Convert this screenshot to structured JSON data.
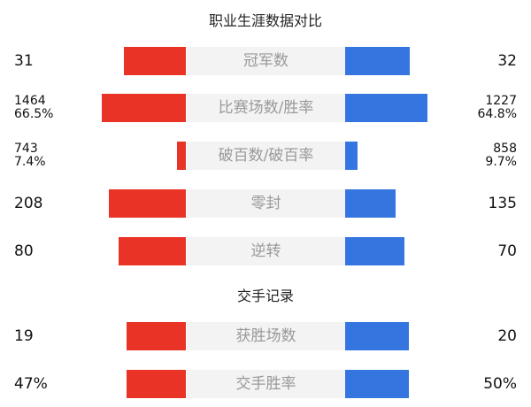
{
  "title": "职业生涯数据对比",
  "section2_title": "交手记录",
  "colors": {
    "left": "#e93326",
    "right": "#3575e0",
    "center_bg": "#f3f3f3"
  },
  "rows": [
    {
      "label": "冠军数",
      "left": [
        "31"
      ],
      "right": [
        "32"
      ],
      "left_bar": 0.7,
      "right_bar": 0.73
    },
    {
      "label": "比赛场数/胜率",
      "left": [
        "1464",
        "66.5%"
      ],
      "right": [
        "1227",
        "64.8%"
      ],
      "left_bar": 0.95,
      "right_bar": 0.93
    },
    {
      "label": "破百数/破百率",
      "left": [
        "743",
        "7.4%"
      ],
      "right": [
        "858",
        "9.7%"
      ],
      "left_bar": 0.1,
      "right_bar": 0.14
    },
    {
      "label": "零封",
      "left": [
        "208"
      ],
      "right": [
        "135"
      ],
      "left_bar": 0.87,
      "right_bar": 0.57
    },
    {
      "label": "逆转",
      "left": [
        "80"
      ],
      "right": [
        "70"
      ],
      "left_bar": 0.76,
      "right_bar": 0.67
    },
    {
      "label": "获胜场数",
      "left": [
        "19"
      ],
      "right": [
        "20"
      ],
      "left_bar": 0.67,
      "right_bar": 0.72
    },
    {
      "label": "交手胜率",
      "left": [
        "47%"
      ],
      "right": [
        "50%"
      ],
      "left_bar": 0.67,
      "right_bar": 0.72
    }
  ]
}
